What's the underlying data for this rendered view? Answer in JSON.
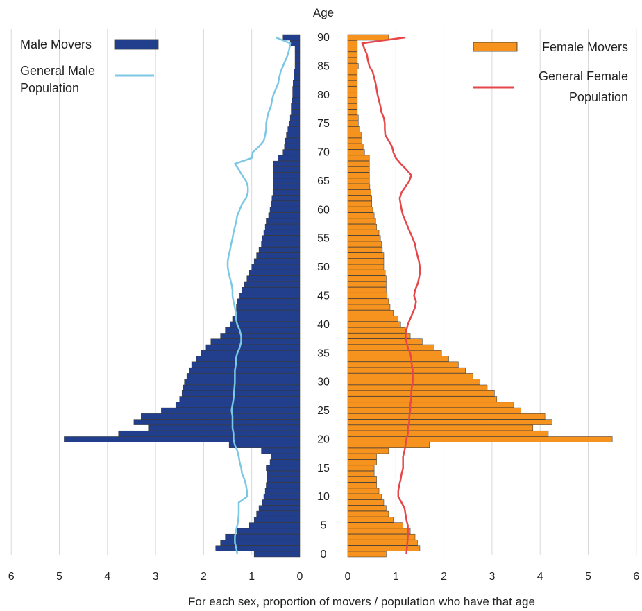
{
  "chart_data": {
    "type": "bar",
    "orientation": "horizontal-butterfly",
    "age_label": "Age",
    "xlabel": "For each sex, proportion of movers / population who have that age",
    "xlim": [
      0,
      6
    ],
    "ylim": [
      0,
      90
    ],
    "x_ticks": [
      "0",
      "1",
      "2",
      "3",
      "4",
      "5",
      "6"
    ],
    "y_ticks": [
      "0",
      "5",
      "10",
      "15",
      "20",
      "25",
      "30",
      "35",
      "40",
      "45",
      "50",
      "55",
      "60",
      "65",
      "70",
      "75",
      "80",
      "85",
      "90"
    ],
    "grid": "vertical",
    "ages": [
      0,
      1,
      2,
      3,
      4,
      5,
      6,
      7,
      8,
      9,
      10,
      11,
      12,
      13,
      14,
      15,
      16,
      17,
      18,
      19,
      20,
      21,
      22,
      23,
      24,
      25,
      26,
      27,
      28,
      29,
      30,
      31,
      32,
      33,
      34,
      35,
      36,
      37,
      38,
      39,
      40,
      41,
      42,
      43,
      44,
      45,
      46,
      47,
      48,
      49,
      50,
      51,
      52,
      53,
      54,
      55,
      56,
      57,
      58,
      59,
      60,
      61,
      62,
      63,
      64,
      65,
      66,
      67,
      68,
      69,
      70,
      71,
      72,
      73,
      74,
      75,
      76,
      77,
      78,
      79,
      80,
      81,
      82,
      83,
      84,
      85,
      86,
      87,
      88,
      89,
      90
    ],
    "legend": {
      "male_movers": "Male Movers",
      "general_male": [
        "General Male",
        "Population"
      ],
      "female_movers": "Female Movers",
      "general_female": [
        "General Female",
        "Population"
      ]
    },
    "colors": {
      "male_movers": "#213f8c",
      "general_male": "#7cc8e4",
      "female_movers": "#f6921e",
      "general_female": "#e5474a",
      "grid": "#d9d9d9",
      "bar_edge": "#333333"
    },
    "series": [
      {
        "name": "Male Movers",
        "side": "left",
        "values": [
          0.95,
          1.75,
          1.65,
          1.55,
          1.3,
          1.05,
          0.95,
          0.9,
          0.85,
          0.78,
          0.75,
          0.72,
          0.7,
          0.68,
          0.68,
          0.7,
          0.62,
          0.6,
          0.8,
          1.47,
          4.9,
          3.77,
          3.15,
          3.45,
          3.3,
          2.88,
          2.58,
          2.5,
          2.45,
          2.42,
          2.4,
          2.35,
          2.3,
          2.25,
          2.15,
          2.05,
          1.95,
          1.85,
          1.65,
          1.55,
          1.45,
          1.4,
          1.35,
          1.32,
          1.3,
          1.25,
          1.2,
          1.15,
          1.1,
          1.05,
          1.0,
          0.95,
          0.9,
          0.85,
          0.8,
          0.78,
          0.75,
          0.72,
          0.7,
          0.65,
          0.62,
          0.6,
          0.58,
          0.56,
          0.55,
          0.55,
          0.55,
          0.55,
          0.55,
          0.45,
          0.35,
          0.32,
          0.3,
          0.28,
          0.25,
          0.22,
          0.2,
          0.18,
          0.18,
          0.16,
          0.15,
          0.15,
          0.14,
          0.12,
          0.12,
          0.1,
          0.1,
          0.1,
          0.1,
          0.2,
          0.35
        ]
      },
      {
        "name": "General Male Population",
        "side": "left",
        "values": [
          1.3,
          1.32,
          1.35,
          1.35,
          1.33,
          1.3,
          1.28,
          1.27,
          1.27,
          1.27,
          1.1,
          1.1,
          1.12,
          1.15,
          1.2,
          1.22,
          1.25,
          1.27,
          1.3,
          1.35,
          1.38,
          1.38,
          1.4,
          1.4,
          1.4,
          1.42,
          1.4,
          1.38,
          1.37,
          1.36,
          1.35,
          1.35,
          1.35,
          1.33,
          1.33,
          1.3,
          1.25,
          1.22,
          1.22,
          1.25,
          1.3,
          1.33,
          1.33,
          1.35,
          1.38,
          1.4,
          1.4,
          1.42,
          1.45,
          1.48,
          1.5,
          1.5,
          1.48,
          1.45,
          1.43,
          1.4,
          1.38,
          1.35,
          1.32,
          1.3,
          1.25,
          1.2,
          1.12,
          1.08,
          1.08,
          1.12,
          1.2,
          1.27,
          1.35,
          1.0,
          0.98,
          0.85,
          0.75,
          0.72,
          0.7,
          0.7,
          0.68,
          0.65,
          0.6,
          0.58,
          0.55,
          0.5,
          0.45,
          0.43,
          0.4,
          0.35,
          0.3,
          0.25,
          0.22,
          0.2,
          0.5
        ]
      },
      {
        "name": "Female Movers",
        "side": "right",
        "values": [
          0.8,
          1.5,
          1.45,
          1.4,
          1.3,
          1.15,
          0.95,
          0.85,
          0.8,
          0.75,
          0.7,
          0.65,
          0.6,
          0.6,
          0.55,
          0.55,
          0.6,
          0.6,
          0.85,
          1.7,
          5.5,
          4.17,
          3.85,
          4.25,
          4.1,
          3.6,
          3.45,
          3.1,
          3.05,
          2.9,
          2.75,
          2.6,
          2.45,
          2.3,
          2.1,
          1.95,
          1.8,
          1.55,
          1.3,
          1.2,
          1.1,
          1.05,
          0.95,
          0.88,
          0.85,
          0.82,
          0.8,
          0.8,
          0.8,
          0.78,
          0.75,
          0.75,
          0.75,
          0.72,
          0.7,
          0.68,
          0.65,
          0.6,
          0.58,
          0.55,
          0.52,
          0.5,
          0.5,
          0.48,
          0.46,
          0.45,
          0.45,
          0.45,
          0.45,
          0.45,
          0.35,
          0.32,
          0.3,
          0.28,
          0.25,
          0.22,
          0.22,
          0.2,
          0.2,
          0.2,
          0.2,
          0.2,
          0.2,
          0.2,
          0.2,
          0.22,
          0.2,
          0.2,
          0.2,
          0.2,
          0.85
        ]
      },
      {
        "name": "General Female Population",
        "side": "right",
        "values": [
          1.22,
          1.23,
          1.24,
          1.25,
          1.25,
          1.25,
          1.22,
          1.2,
          1.18,
          1.12,
          1.05,
          1.05,
          1.07,
          1.1,
          1.12,
          1.15,
          1.15,
          1.15,
          1.18,
          1.2,
          1.22,
          1.25,
          1.25,
          1.28,
          1.28,
          1.3,
          1.3,
          1.32,
          1.32,
          1.33,
          1.35,
          1.35,
          1.35,
          1.33,
          1.32,
          1.3,
          1.25,
          1.22,
          1.2,
          1.22,
          1.25,
          1.3,
          1.35,
          1.4,
          1.42,
          1.38,
          1.4,
          1.45,
          1.48,
          1.5,
          1.5,
          1.48,
          1.45,
          1.42,
          1.4,
          1.35,
          1.3,
          1.25,
          1.2,
          1.15,
          1.12,
          1.1,
          1.08,
          1.12,
          1.2,
          1.28,
          1.32,
          1.22,
          1.1,
          1.0,
          0.95,
          0.92,
          0.85,
          0.78,
          0.77,
          0.77,
          0.75,
          0.7,
          0.68,
          0.65,
          0.62,
          0.6,
          0.58,
          0.55,
          0.52,
          0.45,
          0.42,
          0.4,
          0.35,
          0.3,
          1.2
        ]
      }
    ]
  }
}
